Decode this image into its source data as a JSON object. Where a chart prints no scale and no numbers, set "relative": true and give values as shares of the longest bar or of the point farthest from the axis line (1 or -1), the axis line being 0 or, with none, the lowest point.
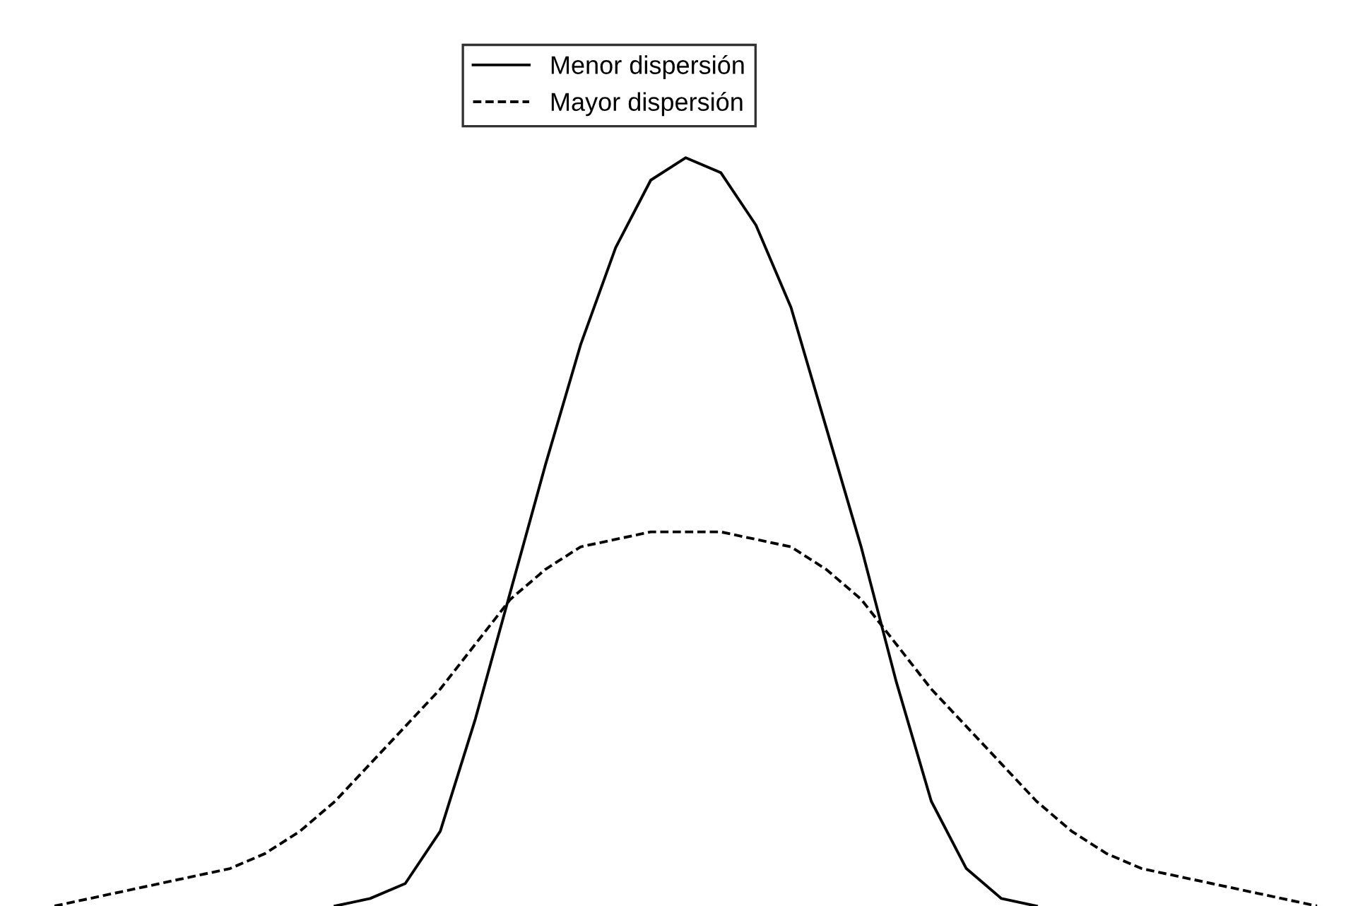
{
  "chart_data": {
    "type": "line",
    "relative": true,
    "legend": "top",
    "grid": false,
    "marker": "none",
    "categories": [
      null,
      null,
      null,
      null,
      null,
      null,
      null,
      null,
      null,
      null,
      null,
      null,
      null,
      null,
      null,
      null,
      null,
      null,
      null,
      null,
      null,
      null,
      null,
      null,
      null,
      null,
      null,
      null,
      null,
      null,
      null,
      null,
      null,
      null,
      null,
      null,
      null
    ],
    "series": [
      {
        "name": "Menor dispersión",
        "color": "#000000",
        "line_style": "solid",
        "values": [
          null,
          null,
          null,
          null,
          null,
          null,
          null,
          null,
          0.0,
          0.01,
          0.03,
          0.1,
          0.25,
          0.42,
          0.59,
          0.75,
          0.88,
          0.97,
          1.0,
          0.98,
          0.91,
          0.8,
          0.64,
          0.48,
          0.3,
          0.14,
          0.05,
          0.01,
          0.0,
          null,
          null,
          null,
          null,
          null,
          null,
          null,
          null
        ]
      },
      {
        "name": "Mayor dispersión",
        "color": "#000000",
        "line_style": "dashed",
        "values": [
          0.0,
          0.01,
          0.02,
          0.03,
          0.04,
          0.05,
          0.07,
          0.1,
          0.14,
          0.19,
          0.24,
          0.29,
          0.35,
          0.41,
          0.45,
          0.48,
          0.49,
          0.5,
          0.5,
          0.5,
          0.49,
          0.48,
          0.45,
          0.41,
          0.35,
          0.29,
          0.24,
          0.19,
          0.14,
          0.1,
          0.07,
          0.05,
          0.04,
          0.03,
          0.02,
          0.01,
          0.0
        ]
      }
    ]
  }
}
